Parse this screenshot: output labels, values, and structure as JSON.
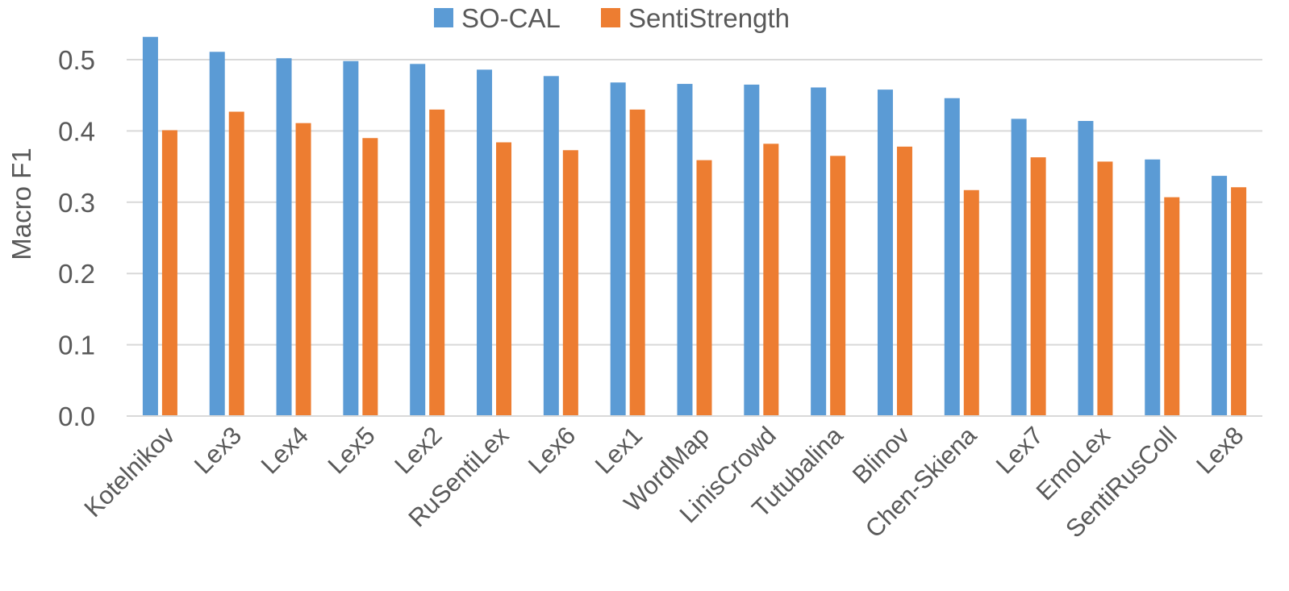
{
  "chart_data": {
    "type": "bar",
    "ylabel": "Macro F1",
    "ylim": [
      0,
      0.5
    ],
    "yticks": [
      "0.0",
      "0.1",
      "0.2",
      "0.3",
      "0.4",
      "0.5"
    ],
    "grid": true,
    "legend_position": "top",
    "categories": [
      "Kotelnikov",
      "Lex3",
      "Lex4",
      "Lex5",
      "Lex2",
      "RuSentiLex",
      "Lex6",
      "Lex1",
      "WordMap",
      "LinisCrowd",
      "Tutubalina",
      "Blinov",
      "Chen-Skiena",
      "Lex7",
      "EmoLex",
      "SentiRusColl",
      "Lex8"
    ],
    "series": [
      {
        "name": "SO-CAL",
        "color": "#5b9bd5",
        "values": [
          0.532,
          0.511,
          0.502,
          0.498,
          0.494,
          0.486,
          0.477,
          0.468,
          0.466,
          0.465,
          0.461,
          0.458,
          0.446,
          0.417,
          0.414,
          0.36,
          0.337
        ]
      },
      {
        "name": "SentiStrength",
        "color": "#ed7d31",
        "values": [
          0.401,
          0.427,
          0.411,
          0.39,
          0.43,
          0.384,
          0.373,
          0.43,
          0.359,
          0.382,
          0.365,
          0.378,
          0.317,
          0.363,
          0.357,
          0.307,
          0.321
        ]
      }
    ]
  }
}
